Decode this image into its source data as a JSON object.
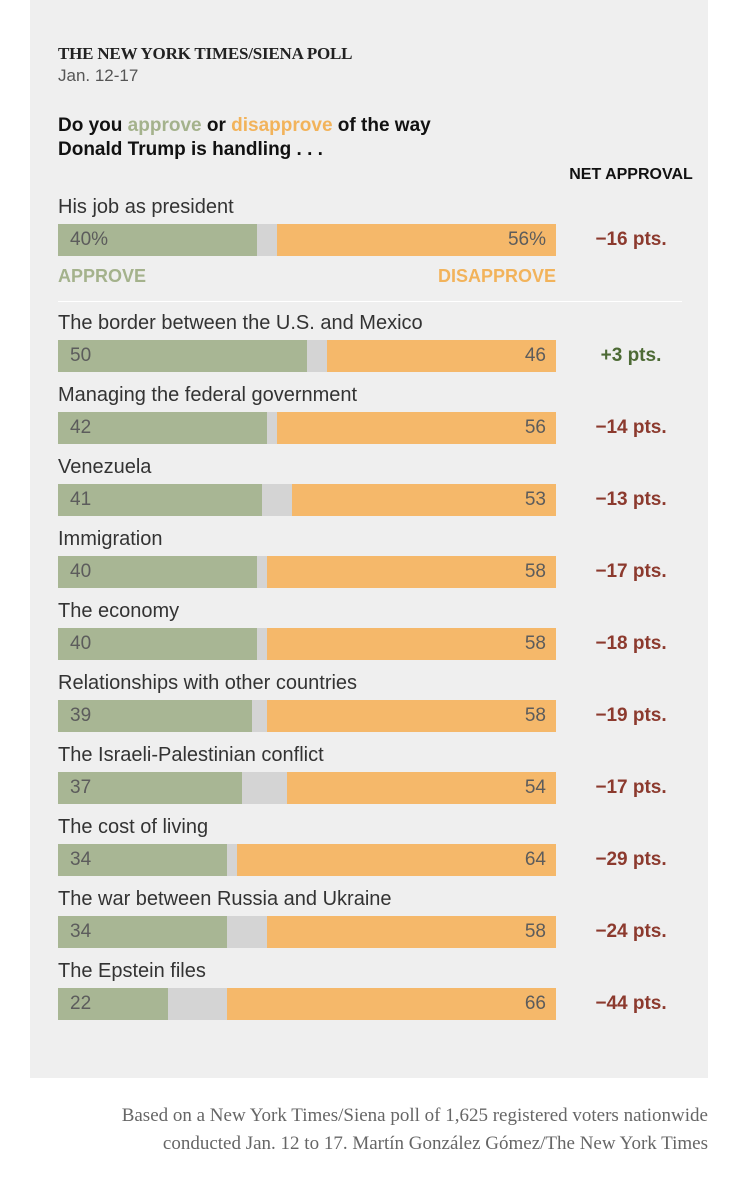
{
  "header": {
    "kicker": "THE NEW YORK TIMES/SIENA POLL",
    "dates": "Jan. 12-17",
    "question_part1": "Do you ",
    "question_approve": "approve",
    "question_part2": " or ",
    "question_disapprove": "disapprove",
    "question_part3": " of the way Donald Trump is handling . . .",
    "net_header": "NET APPROVAL"
  },
  "legend": {
    "approve_label": "APPROVE",
    "disapprove_label": "DISAPPROVE"
  },
  "colors": {
    "approve": "#a8b694",
    "disapprove": "#f5b86a",
    "unsure": "#d4d4d4",
    "net_negative": "#8c3a2e",
    "net_positive": "#4d6a35"
  },
  "chart_data": {
    "type": "bar",
    "title": "Do you approve or disapprove of the way Donald Trump is handling . . .",
    "xlabel": "",
    "ylabel": "",
    "ylim": [
      0,
      100
    ],
    "categories": [
      "His job as president",
      "The border between the U.S. and Mexico",
      "Managing the federal government",
      "Venezuela",
      "Immigration",
      "The economy",
      "Relationships with other countries",
      "The Israeli-Palestinian conflict",
      "The cost of living",
      "The war between Russia and Ukraine",
      "The Epstein files"
    ],
    "series": [
      {
        "name": "Approve",
        "values": [
          40,
          50,
          42,
          41,
          40,
          40,
          39,
          37,
          34,
          34,
          22
        ]
      },
      {
        "name": "Disapprove",
        "values": [
          56,
          46,
          56,
          53,
          58,
          58,
          58,
          54,
          64,
          58,
          66
        ]
      }
    ],
    "approve_labels": [
      "40%",
      "50",
      "42",
      "41",
      "40",
      "40",
      "39",
      "37",
      "34",
      "34",
      "22"
    ],
    "disapprove_labels": [
      "56%",
      "46",
      "56",
      "53",
      "58",
      "58",
      "58",
      "54",
      "64",
      "58",
      "66"
    ],
    "net_approval": [
      "−16 pts.",
      "+3 pts.",
      "−14 pts.",
      "−13 pts.",
      "−17 pts.",
      "−18 pts.",
      "−19 pts.",
      "−17 pts.",
      "−29 pts.",
      "−24 pts.",
      "−44 pts."
    ]
  },
  "footnote": "Based on a New York Times/Siena poll of 1,625 registered voters nationwide conducted Jan. 12 to 17. Martín González Gómez/The New York Times"
}
